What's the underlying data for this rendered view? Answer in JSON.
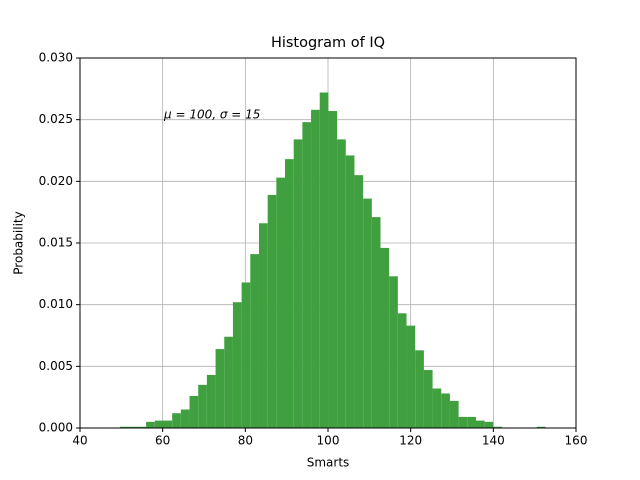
{
  "chart_data": {
    "type": "histogram",
    "title": "Histogram of IQ",
    "x_label": "Smarts",
    "y_label": "Probability",
    "annotation": "μ = 100,  σ = 15",
    "bins": [
      49.7,
      51.8,
      53.9,
      56.0,
      58.1,
      60.2,
      62.3,
      64.4,
      66.5,
      68.6,
      70.7,
      72.8,
      74.9,
      77.0,
      79.1,
      81.2,
      83.3,
      85.4,
      87.5,
      89.6,
      91.7,
      93.8,
      95.9,
      98.0,
      100.1,
      102.2,
      104.3,
      106.4,
      108.5,
      110.6,
      112.7,
      114.8,
      116.9,
      119.0,
      121.1,
      123.2,
      125.3,
      127.4,
      129.5,
      131.6,
      133.7,
      135.8,
      137.9,
      140.0,
      142.1,
      144.2,
      146.3,
      148.4,
      150.5,
      152.6,
      154.7
    ],
    "values": [
      0.0001,
      0.0001,
      0.0001,
      0.0005,
      0.0006,
      0.0006,
      0.0012,
      0.0015,
      0.0026,
      0.0035,
      0.0043,
      0.0064,
      0.0074,
      0.0102,
      0.0118,
      0.0141,
      0.0166,
      0.0189,
      0.0203,
      0.0218,
      0.0234,
      0.0248,
      0.0258,
      0.0272,
      0.0257,
      0.0234,
      0.0221,
      0.0205,
      0.0186,
      0.0171,
      0.0146,
      0.0123,
      0.0093,
      0.0083,
      0.0063,
      0.0047,
      0.0032,
      0.0028,
      0.0022,
      0.0009,
      0.0009,
      0.0006,
      0.0005,
      0.0001,
      0,
      0,
      0,
      0,
      0.0001,
      0
    ],
    "color": "#40a040",
    "xlim": [
      40,
      160
    ],
    "xticks": [
      40,
      60,
      80,
      100,
      120,
      140,
      160
    ],
    "ylim": [
      0,
      0.03
    ],
    "yticks": [
      {
        "value": 0,
        "label": "0.000"
      },
      {
        "value": 0.005,
        "label": "0.005"
      },
      {
        "value": 0.01,
        "label": "0.010"
      },
      {
        "value": 0.015,
        "label": "0.015"
      },
      {
        "value": 0.02,
        "label": "0.020"
      },
      {
        "value": 0.025,
        "label": "0.025"
      },
      {
        "value": 0.03,
        "label": "0.030"
      }
    ],
    "grid": true
  }
}
